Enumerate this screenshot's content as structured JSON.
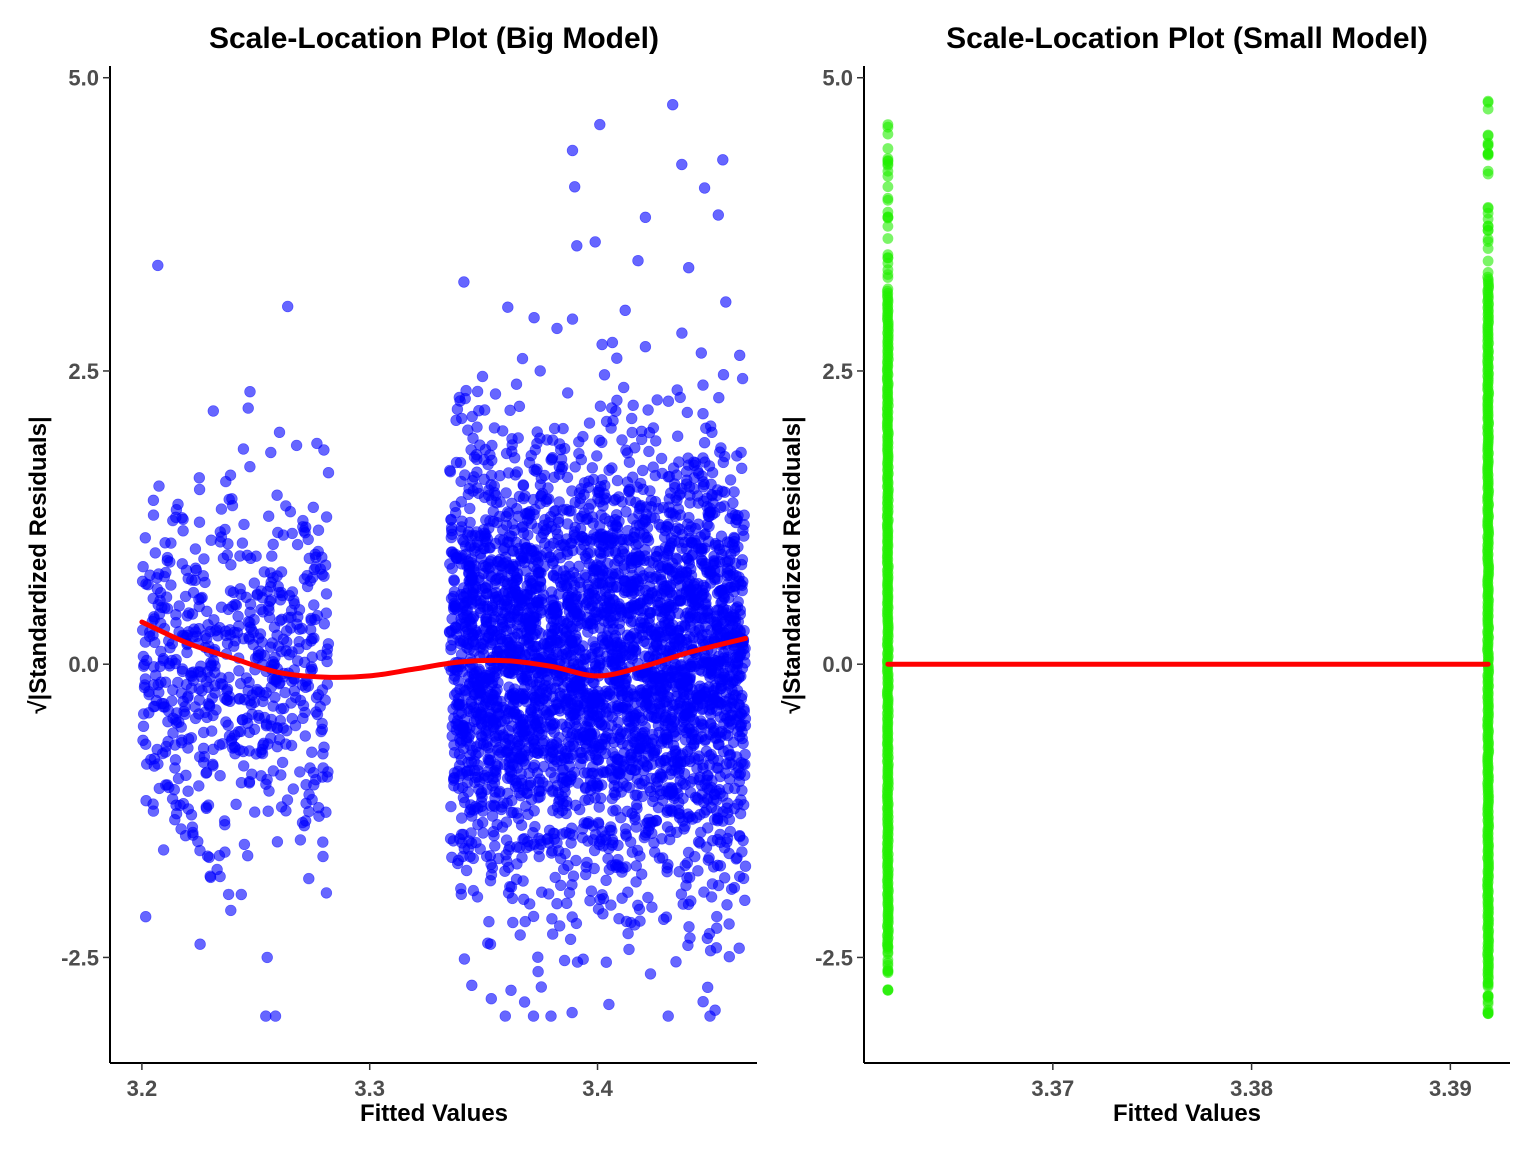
{
  "chart_data": [
    {
      "type": "scatter",
      "title": "Scale-Location Plot (Big Model)",
      "xlabel": "Fitted Values",
      "ylabel": "√|Standardized Residuals|",
      "xlim": [
        3.186,
        3.47
      ],
      "ylim": [
        -3.4,
        5.1
      ],
      "xticks": [
        3.2,
        3.3,
        3.4
      ],
      "xtick_labels": [
        "3.2",
        "3.3",
        "3.4"
      ],
      "yticks": [
        -2.5,
        0.0,
        2.5,
        5.0
      ],
      "ytick_labels": [
        "-2.5",
        "0.0",
        "2.5",
        "5.0"
      ],
      "grid": false,
      "series": [
        {
          "kind": "points",
          "color": "#0000ff",
          "clusters": [
            {
              "x_range": [
                3.2,
                3.282
              ],
              "y_center": 0.0,
              "y_sd": 0.78,
              "count": 650
            },
            {
              "x_range": [
                3.335,
                3.465
              ],
              "y_center": 0.0,
              "y_sd": 0.95,
              "count": 3600
            }
          ],
          "highlighted_points": [
            {
              "x": 3.207,
              "y": 3.4
            },
            {
              "x": 3.264,
              "y": 3.05
            },
            {
              "x": 3.255,
              "y": -2.5
            },
            {
              "x": 3.401,
              "y": 4.6
            },
            {
              "x": 3.433,
              "y": 4.77
            },
            {
              "x": 3.389,
              "y": 4.38
            },
            {
              "x": 3.437,
              "y": 4.26
            },
            {
              "x": 3.455,
              "y": 4.3
            },
            {
              "x": 3.39,
              "y": 4.07
            },
            {
              "x": 3.447,
              "y": 4.06
            },
            {
              "x": 3.453,
              "y": 3.83
            },
            {
              "x": 3.421,
              "y": 3.81
            },
            {
              "x": 3.399,
              "y": 3.6
            },
            {
              "x": 3.44,
              "y": 3.38
            },
            {
              "x": 3.431,
              "y": -3.0
            },
            {
              "x": 3.368,
              "y": -2.88
            },
            {
              "x": 3.405,
              "y": -2.9
            },
            {
              "x": 3.362,
              "y": -2.78
            },
            {
              "x": 3.281,
              "y": -1.95
            },
            {
              "x": 3.233,
              "y": -1.75
            }
          ]
        },
        {
          "kind": "smooth",
          "color": "#ff0000",
          "x": [
            3.2,
            3.22,
            3.24,
            3.26,
            3.28,
            3.3,
            3.32,
            3.34,
            3.36,
            3.38,
            3.4,
            3.42,
            3.44,
            3.465
          ],
          "y": [
            0.36,
            0.18,
            0.05,
            -0.07,
            -0.11,
            -0.1,
            -0.04,
            0.02,
            0.03,
            -0.02,
            -0.1,
            -0.02,
            0.1,
            0.22
          ]
        }
      ]
    },
    {
      "type": "scatter",
      "title": "Scale-Location Plot (Small Model)",
      "xlabel": "Fitted Values",
      "ylabel": "√|Standardized Residuals|",
      "xlim": [
        3.3605,
        3.393
      ],
      "ylim": [
        -3.4,
        5.1
      ],
      "xticks": [
        3.37,
        3.38,
        3.39
      ],
      "xtick_labels": [
        "3.37",
        "3.38",
        "3.39"
      ],
      "yticks": [
        -2.5,
        0.0,
        2.5,
        5.0
      ],
      "ytick_labels": [
        "-2.5",
        "0.0",
        "2.5",
        "5.0"
      ],
      "grid": false,
      "series": [
        {
          "kind": "points",
          "color": "#22ee00",
          "columns": [
            {
              "x": 3.3617,
              "y_min": -2.78,
              "y_max": 4.6,
              "dense_range": [
                -2.4,
                3.2
              ]
            },
            {
              "x": 3.3919,
              "y_min": -2.98,
              "y_max": 4.8,
              "dense_range": [
                -2.7,
                3.3
              ]
            }
          ]
        },
        {
          "kind": "smooth",
          "color": "#ff0000",
          "x": [
            3.3617,
            3.3919
          ],
          "y": [
            0.0,
            0.0
          ]
        }
      ]
    }
  ]
}
